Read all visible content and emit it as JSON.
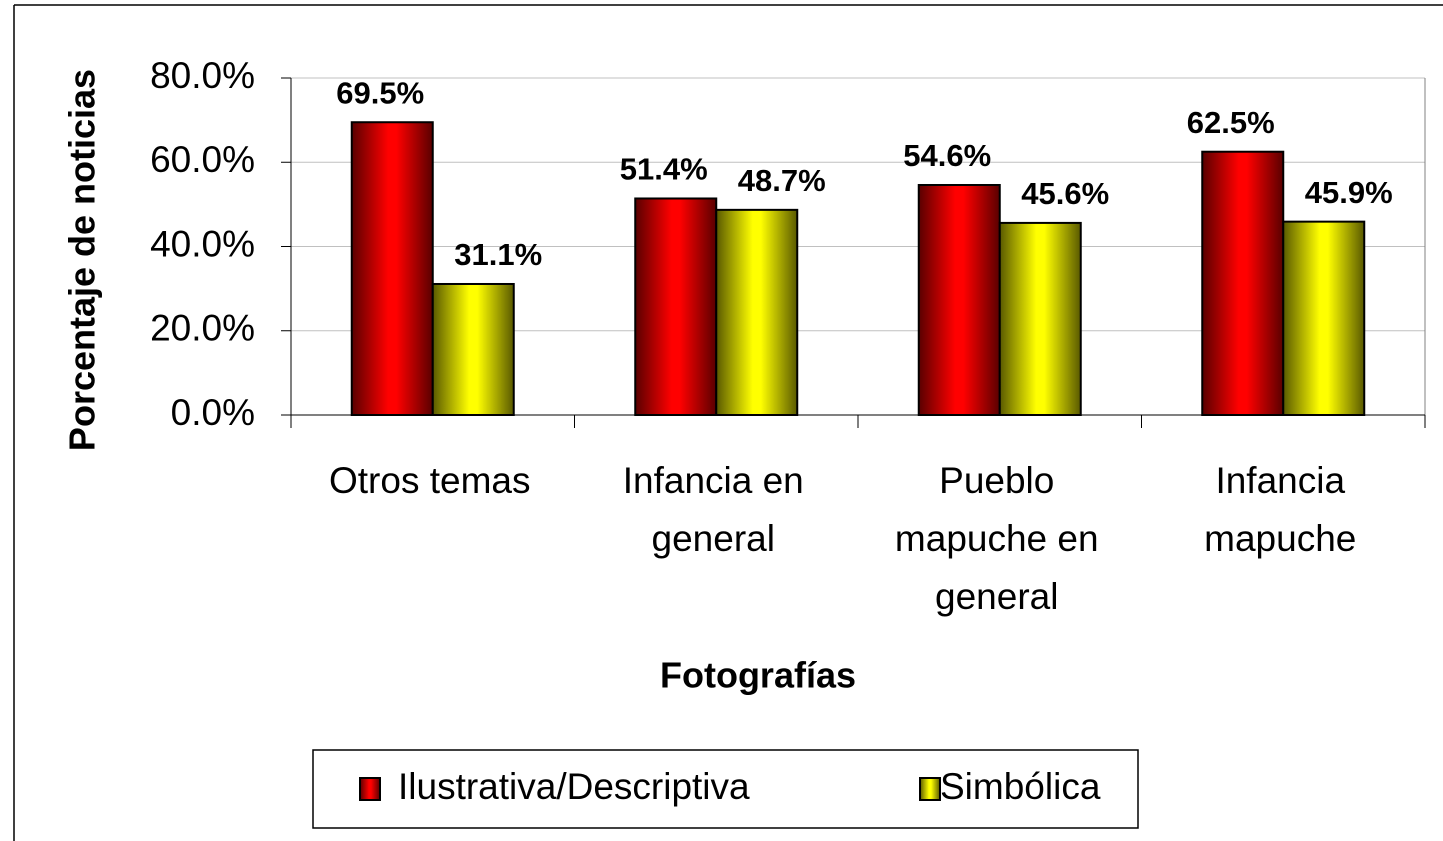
{
  "chart_data": {
    "type": "bar",
    "categories": [
      "Otros temas",
      "Infancia en general",
      "Pueblo mapuche en general",
      "Infancia mapuche"
    ],
    "series": [
      {
        "name": "Ilustrativa/Descriptiva",
        "color": "#ff0000",
        "values": [
          69.5,
          51.4,
          54.6,
          62.5
        ],
        "value_labels": [
          "69.5%",
          "51.4%",
          "54.6%",
          "62.5%"
        ]
      },
      {
        "name": "Simbólica",
        "color": "#ffff00",
        "values": [
          31.1,
          48.7,
          45.6,
          45.9
        ],
        "value_labels": [
          "31.1%",
          "48.7%",
          "45.6%",
          "45.9%"
        ]
      }
    ],
    "ylim": [
      0,
      80
    ],
    "yticks": [
      {
        "value": 0,
        "label": "0.0%"
      },
      {
        "value": 20,
        "label": "20.0%"
      },
      {
        "value": 40,
        "label": "40.0%"
      },
      {
        "value": 60,
        "label": "60.0%"
      },
      {
        "value": 80,
        "label": "80.0%"
      }
    ],
    "xlabel": "Fotografías",
    "ylabel": "Porcentaje de noticias",
    "grid": true,
    "legend": "bottom"
  }
}
